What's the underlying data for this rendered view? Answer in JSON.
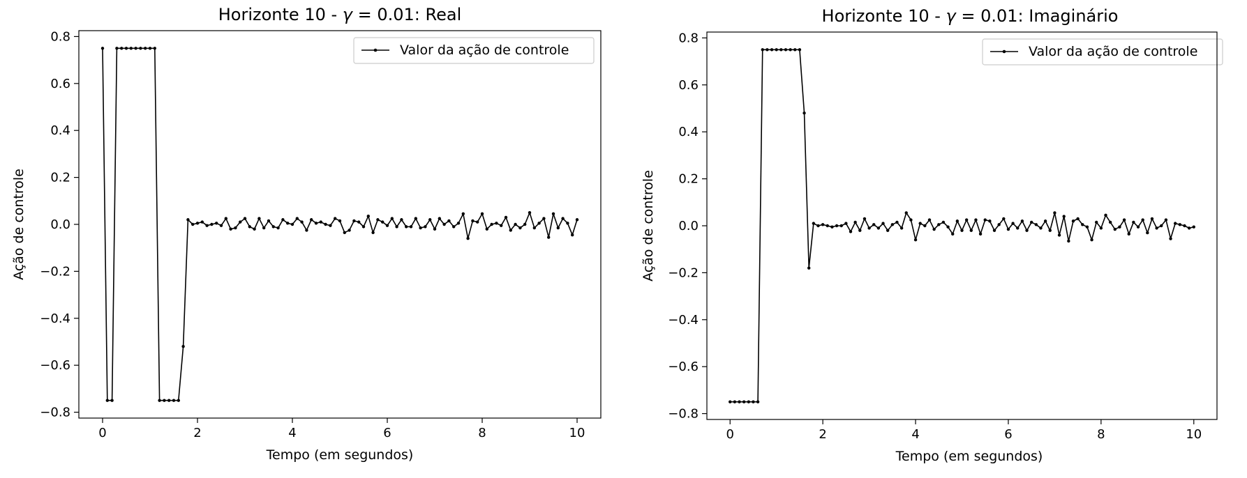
{
  "chart_data": [
    {
      "type": "line",
      "title": "Horizonte 10 - γ = 0.01: Real",
      "title_prefix": "Horizonte 10 - ",
      "title_symbol": "γ",
      "title_suffix": " = 0.01: Real",
      "xlabel": "Tempo (em segundos)",
      "ylabel": "Ação de controle",
      "xlim": [
        -0.5,
        10.5
      ],
      "ylim": [
        -0.825,
        0.825
      ],
      "xticks": [
        0,
        2,
        4,
        6,
        8,
        10
      ],
      "xtick_labels": [
        "0",
        "2",
        "4",
        "6",
        "8",
        "10"
      ],
      "yticks": [
        -0.8,
        -0.6,
        -0.4,
        -0.2,
        0.0,
        0.2,
        0.4,
        0.6,
        0.8
      ],
      "ytick_labels": [
        "−0.8",
        "−0.6",
        "−0.4",
        "−0.2",
        "0.0",
        "0.2",
        "0.4",
        "0.6",
        "0.8"
      ],
      "grid": false,
      "legend_position": "top-right",
      "line_color": "#000000",
      "series": [
        {
          "name": "Valor da ação de controle",
          "x": [
            0.0,
            0.1,
            0.2,
            0.3,
            0.4,
            0.5,
            0.6,
            0.7,
            0.8,
            0.9,
            1.0,
            1.1,
            1.2,
            1.3,
            1.4,
            1.5,
            1.6,
            1.7,
            1.8,
            1.9,
            2.0,
            2.1,
            2.2,
            2.3,
            2.4,
            2.5,
            2.6,
            2.7,
            2.8,
            2.9,
            3.0,
            3.1,
            3.2,
            3.3,
            3.4,
            3.5,
            3.6,
            3.7,
            3.8,
            3.9,
            4.0,
            4.1,
            4.2,
            4.3,
            4.4,
            4.5,
            4.6,
            4.7,
            4.8,
            4.9,
            5.0,
            5.1,
            5.2,
            5.3,
            5.4,
            5.5,
            5.6,
            5.7,
            5.8,
            5.9,
            6.0,
            6.1,
            6.2,
            6.3,
            6.4,
            6.5,
            6.6,
            6.7,
            6.8,
            6.9,
            7.0,
            7.1,
            7.2,
            7.3,
            7.4,
            7.5,
            7.6,
            7.7,
            7.8,
            7.9,
            8.0,
            8.1,
            8.2,
            8.3,
            8.4,
            8.5,
            8.6,
            8.7,
            8.8,
            8.9,
            9.0,
            9.1,
            9.2,
            9.3,
            9.4,
            9.5,
            9.6,
            9.7,
            9.8,
            9.9,
            10.0
          ],
          "y": [
            0.75,
            -0.75,
            -0.75,
            0.75,
            0.75,
            0.75,
            0.75,
            0.75,
            0.75,
            0.75,
            0.75,
            0.75,
            -0.75,
            -0.75,
            -0.75,
            -0.75,
            -0.75,
            -0.52,
            0.02,
            0.0,
            0.005,
            0.01,
            -0.005,
            0.0,
            0.005,
            -0.005,
            0.025,
            -0.02,
            -0.015,
            0.01,
            0.025,
            -0.01,
            -0.02,
            0.025,
            -0.015,
            0.015,
            -0.01,
            -0.015,
            0.02,
            0.005,
            0.0,
            0.025,
            0.01,
            -0.025,
            0.02,
            0.005,
            0.01,
            0.0,
            -0.005,
            0.025,
            0.015,
            -0.035,
            -0.025,
            0.015,
            0.01,
            -0.01,
            0.035,
            -0.035,
            0.02,
            0.01,
            -0.005,
            0.025,
            -0.01,
            0.02,
            -0.01,
            -0.01,
            0.025,
            -0.015,
            -0.01,
            0.02,
            -0.02,
            0.025,
            0.0,
            0.015,
            -0.01,
            0.005,
            0.045,
            -0.06,
            0.015,
            0.01,
            0.045,
            -0.02,
            0.0,
            0.005,
            -0.005,
            0.03,
            -0.025,
            0.0,
            -0.015,
            0.0,
            0.05,
            -0.015,
            0.005,
            0.025,
            -0.055,
            0.045,
            -0.015,
            0.025,
            0.005,
            -0.045,
            0.02
          ]
        }
      ]
    },
    {
      "type": "line",
      "title": "Horizonte 10 - γ = 0.01: Imaginário",
      "title_prefix": "Horizonte 10 - ",
      "title_symbol": "γ",
      "title_suffix": " = 0.01: Imaginário",
      "xlabel": "Tempo (em segundos)",
      "ylabel": "Ação de controle",
      "xlim": [
        -0.5,
        10.5
      ],
      "ylim": [
        -0.825,
        0.825
      ],
      "xticks": [
        0,
        2,
        4,
        6,
        8,
        10
      ],
      "xtick_labels": [
        "0",
        "2",
        "4",
        "6",
        "8",
        "10"
      ],
      "yticks": [
        -0.8,
        -0.6,
        -0.4,
        -0.2,
        0.0,
        0.2,
        0.4,
        0.6,
        0.8
      ],
      "ytick_labels": [
        "−0.8",
        "−0.6",
        "−0.4",
        "−0.2",
        "0.0",
        "0.2",
        "0.4",
        "0.6",
        "0.8"
      ],
      "grid": false,
      "legend_position": "top-right",
      "line_color": "#000000",
      "series": [
        {
          "name": "Valor da ação de controle",
          "x": [
            0.0,
            0.1,
            0.2,
            0.3,
            0.4,
            0.5,
            0.6,
            0.7,
            0.8,
            0.9,
            1.0,
            1.1,
            1.2,
            1.3,
            1.4,
            1.5,
            1.6,
            1.7,
            1.8,
            1.9,
            2.0,
            2.1,
            2.2,
            2.3,
            2.4,
            2.5,
            2.6,
            2.7,
            2.8,
            2.9,
            3.0,
            3.1,
            3.2,
            3.3,
            3.4,
            3.5,
            3.6,
            3.7,
            3.8,
            3.9,
            4.0,
            4.1,
            4.2,
            4.3,
            4.4,
            4.5,
            4.6,
            4.7,
            4.8,
            4.9,
            5.0,
            5.1,
            5.2,
            5.3,
            5.4,
            5.5,
            5.6,
            5.7,
            5.8,
            5.9,
            6.0,
            6.1,
            6.2,
            6.3,
            6.4,
            6.5,
            6.6,
            6.7,
            6.8,
            6.9,
            7.0,
            7.1,
            7.2,
            7.3,
            7.4,
            7.5,
            7.6,
            7.7,
            7.8,
            7.9,
            8.0,
            8.1,
            8.2,
            8.3,
            8.4,
            8.5,
            8.6,
            8.7,
            8.8,
            8.9,
            9.0,
            9.1,
            9.2,
            9.3,
            9.4,
            9.5,
            9.6,
            9.7,
            9.8,
            9.9,
            10.0
          ],
          "y": [
            -0.75,
            -0.75,
            -0.75,
            -0.75,
            -0.75,
            -0.75,
            -0.75,
            0.75,
            0.75,
            0.75,
            0.75,
            0.75,
            0.75,
            0.75,
            0.75,
            0.75,
            0.48,
            -0.18,
            0.01,
            0.0,
            0.005,
            0.0,
            -0.005,
            0.0,
            0.0,
            0.01,
            -0.025,
            0.015,
            -0.02,
            0.03,
            -0.01,
            0.005,
            -0.01,
            0.01,
            -0.02,
            0.005,
            0.015,
            -0.01,
            0.055,
            0.025,
            -0.06,
            0.01,
            0.0,
            0.025,
            -0.015,
            0.005,
            0.015,
            -0.005,
            -0.035,
            0.02,
            -0.02,
            0.025,
            -0.02,
            0.025,
            -0.035,
            0.025,
            0.02,
            -0.02,
            0.005,
            0.03,
            -0.015,
            0.01,
            -0.01,
            0.02,
            -0.02,
            0.015,
            0.005,
            -0.01,
            0.02,
            -0.02,
            0.055,
            -0.04,
            0.04,
            -0.065,
            0.02,
            0.03,
            0.005,
            -0.005,
            -0.06,
            0.015,
            -0.01,
            0.045,
            0.015,
            -0.015,
            -0.005,
            0.025,
            -0.035,
            0.015,
            -0.005,
            0.025,
            -0.03,
            0.03,
            -0.01,
            0.0,
            0.025,
            -0.055,
            0.01,
            0.005,
            0.0,
            -0.01,
            -0.005
          ]
        }
      ]
    }
  ]
}
